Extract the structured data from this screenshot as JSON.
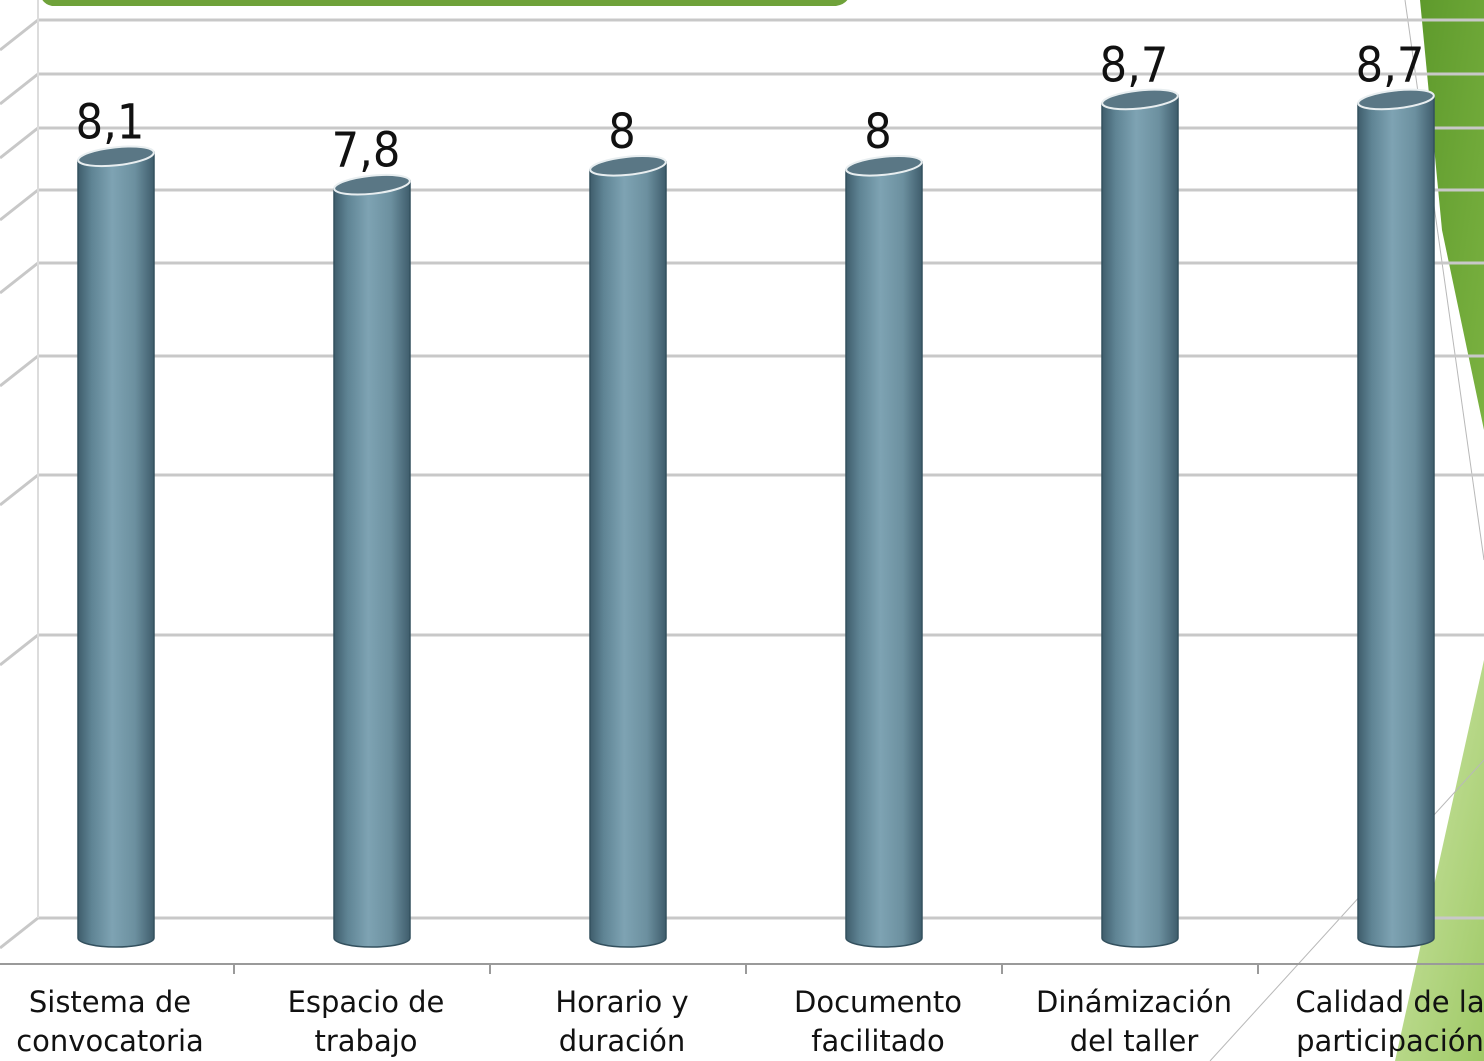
{
  "chart_data": {
    "type": "bar",
    "style": "3d-cylinder",
    "categories": [
      [
        "Sistema de",
        "convocatoria"
      ],
      [
        "Espacio de",
        "trabajo"
      ],
      [
        "Horario y",
        "duración"
      ],
      [
        "Documento",
        "facilitado"
      ],
      [
        "Dinámización",
        "del taller"
      ],
      [
        "Calidad  de la",
        "participación"
      ]
    ],
    "values": [
      8.1,
      7.8,
      8,
      8,
      8.7,
      8.7
    ],
    "data_labels": [
      "8,1",
      "7,8",
      "8",
      "8",
      "8,7",
      "8,7"
    ],
    "ylim": [
      0,
      9
    ],
    "grid": true,
    "colors": {
      "bar": "#6f95a6",
      "bar_dark": "#3f5d6c",
      "bar_top": "#5a7785",
      "grid": "#c8c8c8",
      "axis": "#9a9a9a",
      "accent_green": "#6fa23a",
      "accent_light_green": "#a9cf6f"
    }
  }
}
